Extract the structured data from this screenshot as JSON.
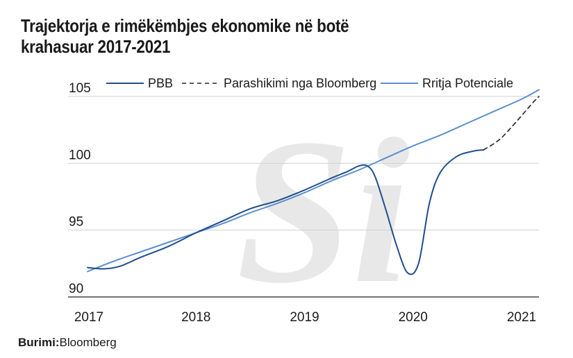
{
  "page": {
    "title_line1": "Trajektorja e rimëkëmbjes ekonomike në botë",
    "title_line2": "krahasuar 2017-2021",
    "source_label": "Burimi:",
    "source_value": "Bloomberg"
  },
  "chart_data": {
    "type": "line",
    "title": "Trajektorja e rimëkëmbjes ekonomike në botë krahasuar 2017-2021",
    "xlabel": "",
    "ylabel": "",
    "xlim": [
      2017,
      2021.16
    ],
    "ylim": [
      90,
      106
    ],
    "x_ticks": [
      2017,
      2018,
      2019,
      2020,
      2021
    ],
    "y_ticks": [
      90,
      95,
      100,
      105
    ],
    "grid": "horizontal",
    "legend_position": "top",
    "series": [
      {
        "name": "PBB",
        "color": "#1f4e8c",
        "style": "solid",
        "points": [
          [
            2017.0,
            92.2
          ],
          [
            2017.15,
            92.1
          ],
          [
            2017.3,
            92.3
          ],
          [
            2017.5,
            93.0
          ],
          [
            2017.75,
            93.8
          ],
          [
            2018.0,
            94.8
          ],
          [
            2018.25,
            95.7
          ],
          [
            2018.5,
            96.6
          ],
          [
            2018.75,
            97.2
          ],
          [
            2019.0,
            98.0
          ],
          [
            2019.25,
            98.9
          ],
          [
            2019.4,
            99.4
          ],
          [
            2019.5,
            99.8
          ],
          [
            2019.58,
            99.8
          ],
          [
            2019.65,
            99.0
          ],
          [
            2019.75,
            96.5
          ],
          [
            2019.85,
            93.8
          ],
          [
            2019.95,
            91.8
          ],
          [
            2020.05,
            92.5
          ],
          [
            2020.15,
            97.0
          ],
          [
            2020.25,
            99.3
          ],
          [
            2020.4,
            100.5
          ],
          [
            2020.55,
            100.9
          ],
          [
            2020.65,
            101.0
          ]
        ]
      },
      {
        "name": "Parashikimi nga Bloomberg",
        "color": "#222222",
        "style": "dashed",
        "points": [
          [
            2020.65,
            101.0
          ],
          [
            2020.8,
            101.8
          ],
          [
            2020.95,
            103.1
          ],
          [
            2021.1,
            104.5
          ],
          [
            2021.16,
            105.0
          ]
        ]
      },
      {
        "name": "Rritja Potenciale",
        "color": "#5b8fce",
        "style": "solid",
        "points": [
          [
            2017.0,
            91.9
          ],
          [
            2017.25,
            92.7
          ],
          [
            2017.5,
            93.4
          ],
          [
            2017.75,
            94.1
          ],
          [
            2018.0,
            94.8
          ],
          [
            2018.25,
            95.5
          ],
          [
            2018.5,
            96.3
          ],
          [
            2018.75,
            97.0
          ],
          [
            2019.0,
            97.8
          ],
          [
            2019.25,
            98.7
          ],
          [
            2019.5,
            99.5
          ],
          [
            2019.75,
            100.4
          ],
          [
            2020.0,
            101.3
          ],
          [
            2020.25,
            102.1
          ],
          [
            2020.5,
            103.0
          ],
          [
            2020.75,
            103.9
          ],
          [
            2021.0,
            104.8
          ],
          [
            2021.16,
            105.5
          ]
        ]
      }
    ]
  }
}
